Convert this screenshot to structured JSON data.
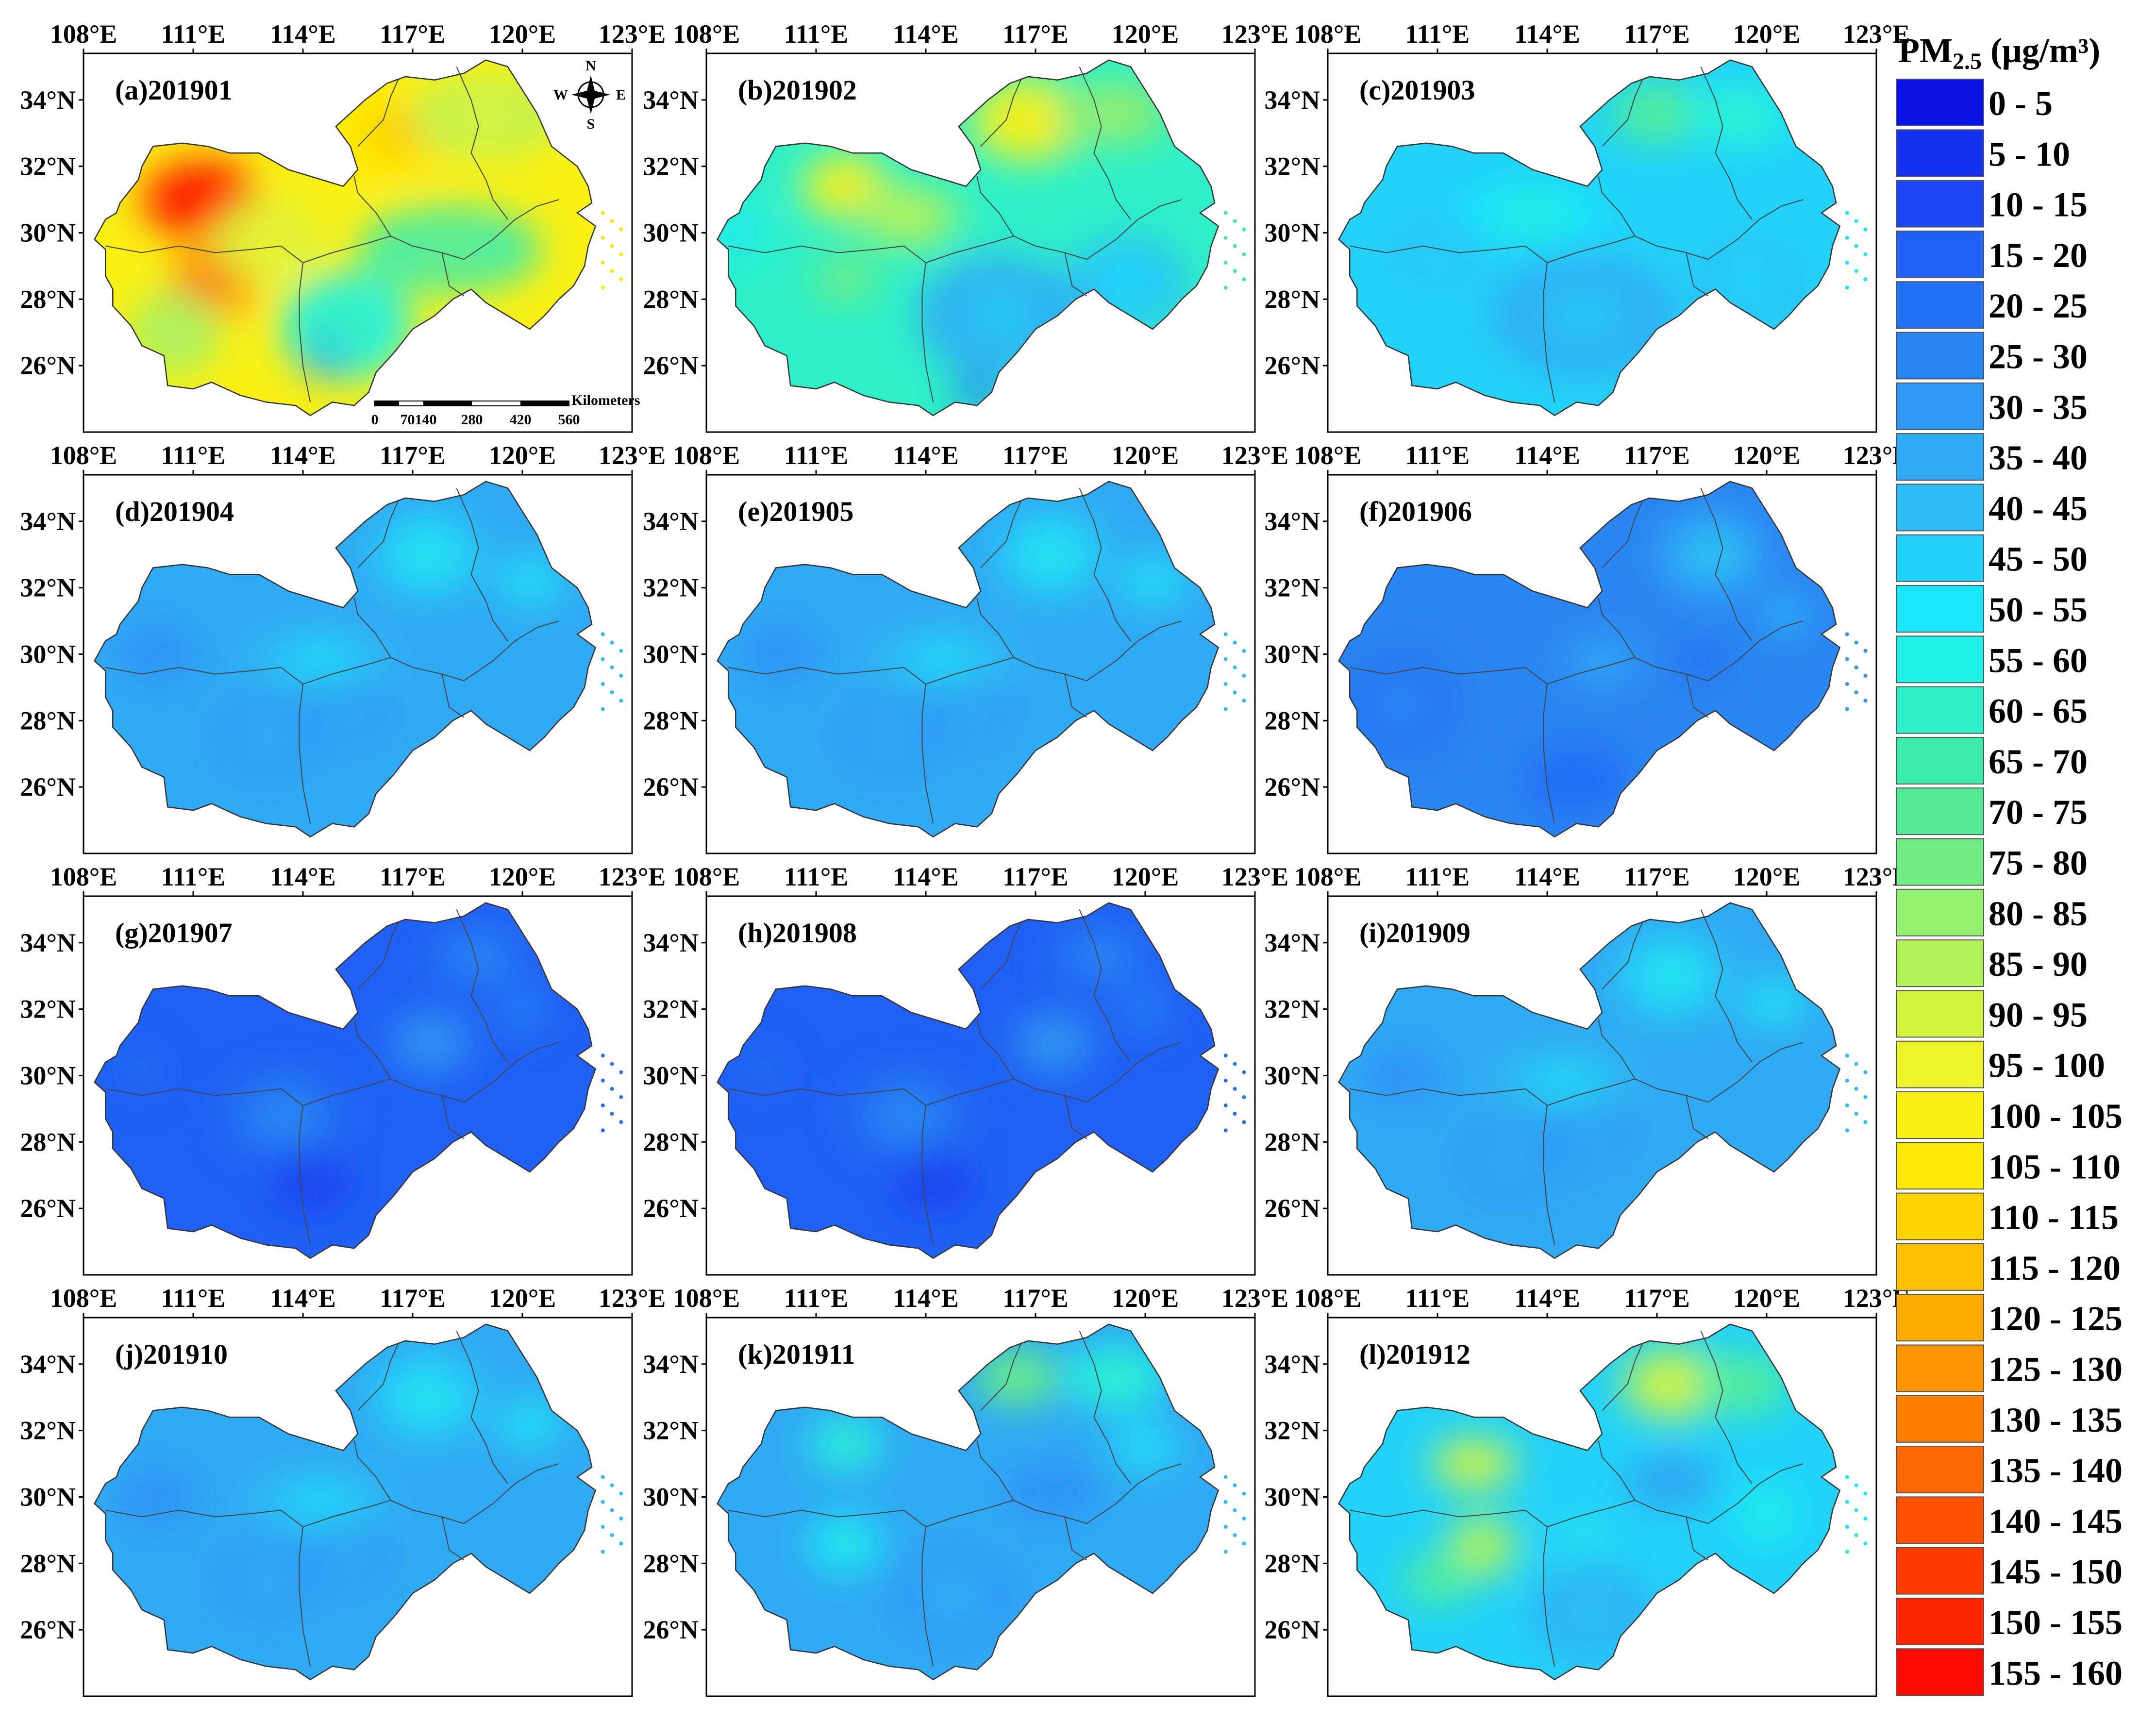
{
  "x_ticks": [
    "108°E",
    "111°E",
    "114°E",
    "117°E",
    "120°E",
    "123°E"
  ],
  "y_ticks": [
    "34°N",
    "32°N",
    "30°N",
    "28°N",
    "26°N"
  ],
  "panels": [
    {
      "label": "(a)201901",
      "level": "very_high"
    },
    {
      "label": "(b)201902",
      "level": "high"
    },
    {
      "label": "(c)201903",
      "level": "medium"
    },
    {
      "label": "(d)201904",
      "level": "low"
    },
    {
      "label": "(e)201905",
      "level": "low"
    },
    {
      "label": "(f)201906",
      "level": "low2"
    },
    {
      "label": "(g)201907",
      "level": "verylow"
    },
    {
      "label": "(h)201908",
      "level": "verylow"
    },
    {
      "label": "(i)201909",
      "level": "low"
    },
    {
      "label": "(j)201910",
      "level": "low"
    },
    {
      "label": "(k)201911",
      "level": "medium2"
    },
    {
      "label": "(l)201912",
      "level": "high2"
    }
  ],
  "legend": {
    "title_main": "PM",
    "title_sub": "2.5",
    "title_unit": " (μg/m³)",
    "bins": [
      {
        "label": "0    -  5",
        "color": "#0a14e6"
      },
      {
        "label": "5    -  10",
        "color": "#1432ee"
      },
      {
        "label": "10  -  15",
        "color": "#1e46f2"
      },
      {
        "label": "15  -  20",
        "color": "#2060f4"
      },
      {
        "label": "20  -  25",
        "color": "#2470f2"
      },
      {
        "label": "25  -  30",
        "color": "#2a86f2"
      },
      {
        "label": "30  -  35",
        "color": "#2e98f2"
      },
      {
        "label": "35  -  40",
        "color": "#30aaf4"
      },
      {
        "label": "40  -  45",
        "color": "#2cbcf6"
      },
      {
        "label": "45  -  50",
        "color": "#22d2f8"
      },
      {
        "label": "50  -  55",
        "color": "#18e8fa"
      },
      {
        "label": "55  -  60",
        "color": "#20f2e8"
      },
      {
        "label": "60  -  65",
        "color": "#2ef0c8"
      },
      {
        "label": "65  -  70",
        "color": "#3cecaa"
      },
      {
        "label": "70  -  75",
        "color": "#52ea94"
      },
      {
        "label": "75  -  80",
        "color": "#70ec84"
      },
      {
        "label": "80  -  85",
        "color": "#92f070"
      },
      {
        "label": "85  -  90",
        "color": "#b4f25a"
      },
      {
        "label": "90  -  95",
        "color": "#d4f442"
      },
      {
        "label": "95  - 100",
        "color": "#ecf42a"
      },
      {
        "label": "100 - 105",
        "color": "#faf014"
      },
      {
        "label": "105 - 110",
        "color": "#fee806"
      },
      {
        "label": "110 - 115",
        "color": "#fed400"
      },
      {
        "label": "115 - 120",
        "color": "#fec000"
      },
      {
        "label": "120 - 125",
        "color": "#feaa00"
      },
      {
        "label": "125 - 130",
        "color": "#fe9400"
      },
      {
        "label": "130 - 135",
        "color": "#fe7e00"
      },
      {
        "label": "135 - 140",
        "color": "#fe6800"
      },
      {
        "label": "140 - 145",
        "color": "#fe5200"
      },
      {
        "label": "145 - 150",
        "color": "#fe3c00"
      },
      {
        "label": "150 - 155",
        "color": "#fe2600"
      },
      {
        "label": "155 - 160",
        "color": "#fe0a00"
      }
    ]
  },
  "north_arrow": {
    "n": "N",
    "s": "S",
    "e": "E",
    "w": "W"
  },
  "scale_bar": {
    "labels": [
      "0",
      "70140",
      "280",
      "420",
      "560"
    ],
    "unit": "Kilometers"
  }
}
